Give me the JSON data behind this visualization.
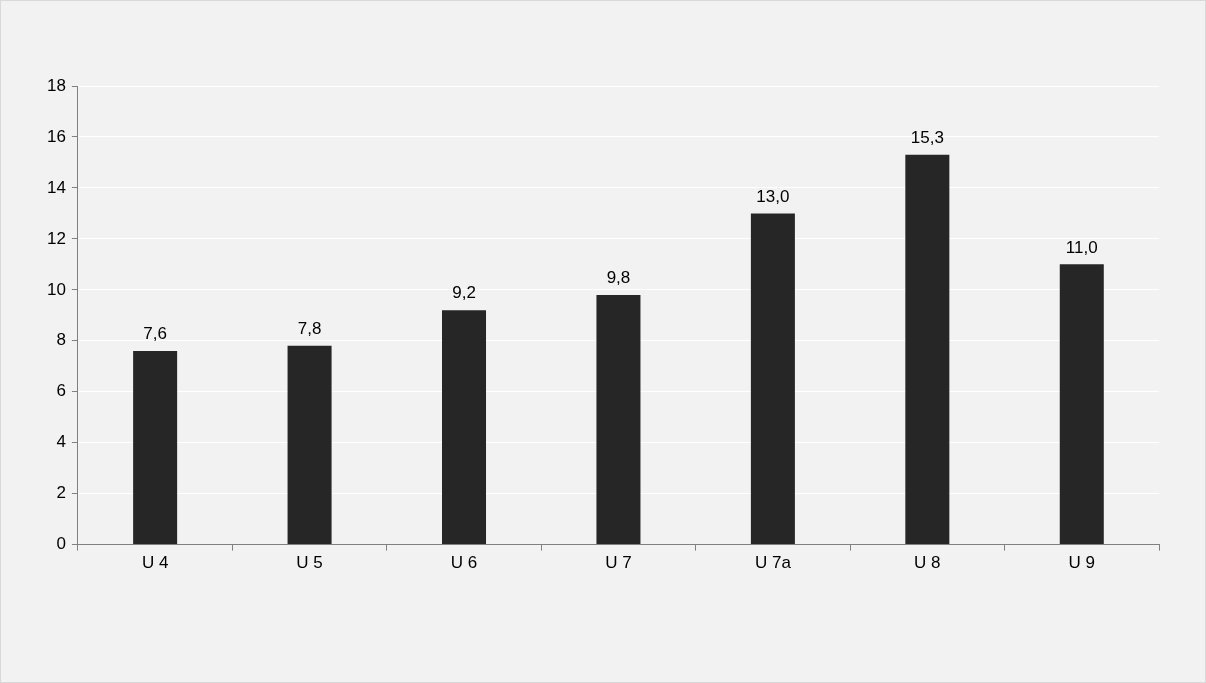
{
  "chart_data": {
    "type": "bar",
    "categories": [
      "U 4",
      "U 5",
      "U 6",
      "U 7",
      "U 7a",
      "U 8",
      "U 9"
    ],
    "values": [
      7.6,
      7.8,
      9.2,
      9.8,
      13.0,
      15.3,
      11.0
    ],
    "value_labels": [
      "7,6",
      "7,8",
      "9,2",
      "9,8",
      "13,0",
      "15,3",
      "11,0"
    ],
    "color": "#262626",
    "ylim": [
      0,
      18
    ],
    "yticks": [
      0,
      2,
      4,
      6,
      8,
      10,
      12,
      14,
      16,
      18
    ],
    "grid": "y",
    "legend": false
  }
}
